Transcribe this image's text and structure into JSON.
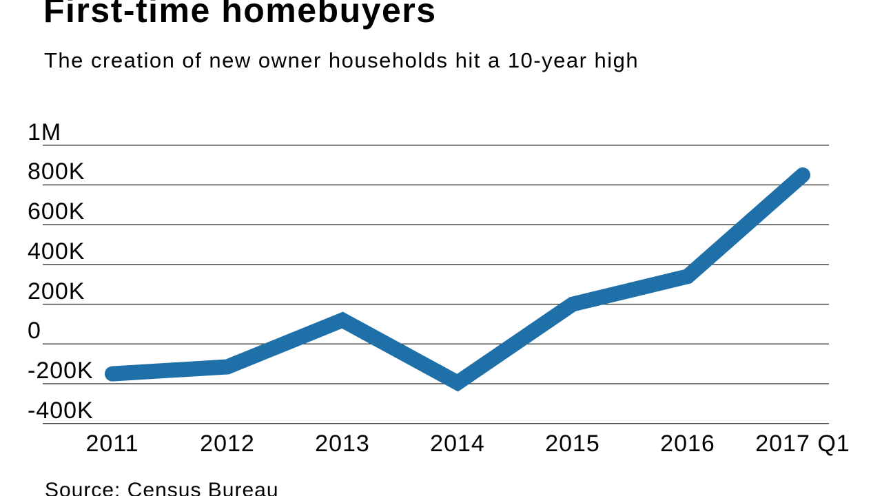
{
  "chart_data": {
    "type": "line",
    "title": "First-time homebuyers",
    "subtitle": "The creation of new owner households hit a 10-year high",
    "source": "Source: Census Bureau",
    "x_categories": [
      "2011",
      "2012",
      "2013",
      "2014",
      "2015",
      "2016",
      "2017 Q1"
    ],
    "values_thousands": [
      -150,
      -115,
      120,
      -195,
      200,
      340,
      850
    ],
    "y_ticks": [
      {
        "label": "1M",
        "value_thousands": 1000
      },
      {
        "label": "800K",
        "value_thousands": 800
      },
      {
        "label": "600K",
        "value_thousands": 600
      },
      {
        "label": "400K",
        "value_thousands": 400
      },
      {
        "label": "200K",
        "value_thousands": 200
      },
      {
        "label": "0",
        "value_thousands": 0
      },
      {
        "label": "-200K",
        "value_thousands": -200
      },
      {
        "label": "-400K",
        "value_thousands": -400
      }
    ],
    "ylim_thousands": [
      -400,
      1000
    ],
    "grid": true,
    "legend": "none",
    "line_color": "#1f6fa8",
    "grid_color": "#454545",
    "text_color": "#000000",
    "background_color": "#ffffff"
  }
}
